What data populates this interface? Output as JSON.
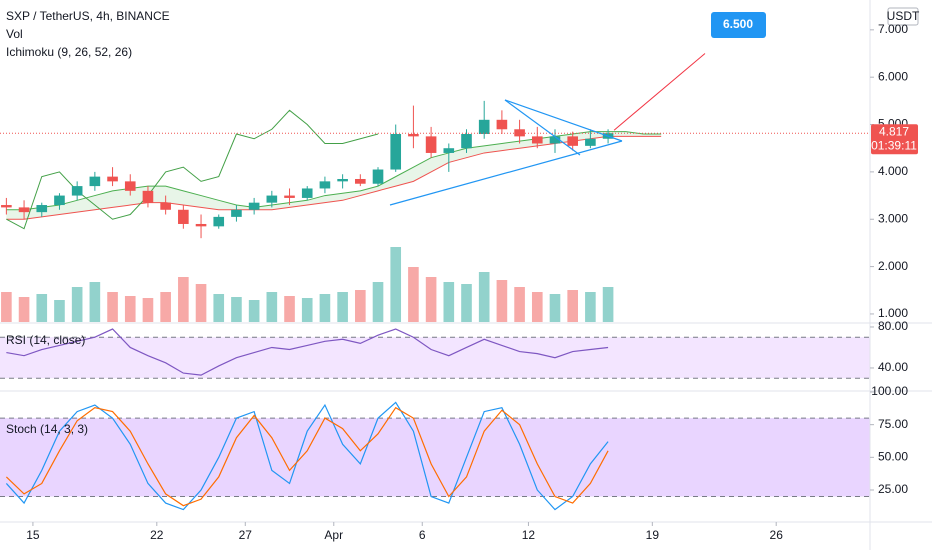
{
  "chart_data": [
    {
      "type": "candlestick",
      "title": "SXP / TetherUS, 4h, BINANCE",
      "volume_label": "Vol",
      "indicator_label": "Ichimoku (9, 26, 52, 26)",
      "currency": "USDT",
      "up_color": "#26a69a",
      "down_color": "#ef5350",
      "xlim": [
        13.14,
        62.3
      ],
      "xticks": [
        {
          "value": 15,
          "label": "15"
        },
        {
          "value": 22,
          "label": "22"
        },
        {
          "value": 27,
          "label": "27"
        },
        {
          "value": 32,
          "label": "Apr"
        },
        {
          "value": 37,
          "label": "6"
        },
        {
          "value": 43,
          "label": "12"
        },
        {
          "value": 50,
          "label": "19"
        },
        {
          "value": 57,
          "label": "26"
        }
      ],
      "ylim": [
        0.83,
        7.63
      ],
      "yticks": [
        {
          "value": 7,
          "label": "7.000"
        },
        {
          "value": 6,
          "label": "6.000"
        },
        {
          "value": 5,
          "label": "5.000"
        },
        {
          "value": 4,
          "label": "4.000"
        },
        {
          "value": 3,
          "label": "3.000"
        },
        {
          "value": 2,
          "label": "2.000"
        },
        {
          "value": 1,
          "label": "1.000"
        }
      ],
      "x": [
        13.5,
        14.5,
        15.5,
        16.5,
        17.5,
        18.5,
        19.5,
        20.5,
        21.5,
        22.5,
        23.5,
        24.5,
        25.5,
        26.5,
        27.5,
        28.5,
        29.5,
        30.5,
        31.5,
        32.5,
        33.5,
        34.5,
        35.5,
        36.5,
        37.5,
        38.5,
        39.5,
        40.5,
        41.5,
        42.5,
        43.5,
        44.5,
        45.5,
        46.5,
        47.5
      ],
      "open": [
        3.3,
        3.25,
        3.15,
        3.3,
        3.5,
        3.7,
        3.9,
        3.8,
        3.6,
        3.35,
        3.2,
        2.9,
        2.85,
        3.05,
        3.2,
        3.35,
        3.5,
        3.45,
        3.65,
        3.8,
        3.85,
        3.75,
        4.05,
        4.8,
        4.75,
        4.4,
        4.5,
        4.8,
        5.1,
        4.9,
        4.75,
        4.6,
        4.75,
        4.55,
        4.7
      ],
      "high": [
        3.45,
        3.4,
        3.35,
        3.55,
        3.8,
        4.0,
        4.1,
        3.95,
        3.7,
        3.5,
        3.3,
        3.1,
        3.1,
        3.3,
        3.45,
        3.6,
        3.65,
        3.7,
        3.9,
        3.95,
        3.95,
        4.1,
        5.0,
        5.4,
        4.95,
        4.6,
        4.9,
        5.5,
        5.3,
        5.1,
        4.95,
        4.9,
        4.85,
        4.9,
        4.9
      ],
      "low": [
        3.1,
        3.0,
        3.05,
        3.2,
        3.4,
        3.6,
        3.7,
        3.5,
        3.25,
        3.1,
        2.8,
        2.6,
        2.8,
        2.95,
        3.1,
        3.25,
        3.3,
        3.4,
        3.55,
        3.65,
        3.7,
        3.7,
        4.0,
        4.5,
        4.3,
        4.0,
        4.4,
        4.7,
        4.8,
        4.6,
        4.5,
        4.4,
        4.45,
        4.5,
        4.6
      ],
      "close": [
        3.25,
        3.15,
        3.3,
        3.5,
        3.7,
        3.9,
        3.8,
        3.6,
        3.35,
        3.2,
        2.9,
        2.85,
        3.05,
        3.2,
        3.35,
        3.5,
        3.45,
        3.65,
        3.8,
        3.85,
        3.75,
        4.05,
        4.8,
        4.75,
        4.4,
        4.5,
        4.8,
        5.1,
        4.9,
        4.75,
        4.6,
        4.75,
        4.55,
        4.7,
        4.817
      ],
      "volume": {
        "ylim": [
          0,
          100
        ],
        "values": [
          30,
          25,
          28,
          22,
          35,
          40,
          30,
          26,
          24,
          30,
          45,
          38,
          28,
          25,
          22,
          30,
          26,
          24,
          28,
          30,
          32,
          40,
          75,
          55,
          45,
          40,
          38,
          50,
          42,
          35,
          30,
          28,
          32,
          30,
          35
        ]
      },
      "ichimoku": [
        {
          "color": "#4caf50",
          "x": [
            13.5,
            14.5,
            15.5,
            16.5,
            17.5,
            18.5,
            19.5,
            20.5,
            21.5,
            22.5,
            23.5,
            24.5,
            25.5,
            26.5,
            27.5,
            28.5,
            29.5,
            30.5,
            31.5,
            32.5,
            33.5,
            34.5,
            35.5,
            36.5,
            37.5,
            38.5,
            39.5,
            40.5,
            41.5,
            42.5,
            43.5,
            44.5,
            45.5,
            46.5,
            47.5,
            48.5,
            49.5,
            50.5
          ],
          "values": [
            3.2,
            3.2,
            3.25,
            3.3,
            3.4,
            3.5,
            3.6,
            3.65,
            3.7,
            3.7,
            3.6,
            3.5,
            3.4,
            3.3,
            3.25,
            3.3,
            3.35,
            3.4,
            3.5,
            3.55,
            3.6,
            3.7,
            3.9,
            4.1,
            4.3,
            4.4,
            4.5,
            4.55,
            4.6,
            4.65,
            4.7,
            4.75,
            4.8,
            4.85,
            4.85,
            4.85,
            4.8,
            4.8
          ]
        },
        {
          "color": "#ef5350",
          "x": [
            13.5,
            14.5,
            15.5,
            16.5,
            17.5,
            18.5,
            19.5,
            20.5,
            21.5,
            22.5,
            23.5,
            24.5,
            25.5,
            26.5,
            27.5,
            28.5,
            29.5,
            30.5,
            31.5,
            32.5,
            33.5,
            34.5,
            35.5,
            36.5,
            37.5,
            38.5,
            39.5,
            40.5,
            41.5,
            42.5,
            43.5,
            44.5,
            45.5,
            46.5,
            47.5,
            48.5,
            49.5,
            50.5
          ],
          "values": [
            3.0,
            3.0,
            3.05,
            3.1,
            3.15,
            3.2,
            3.25,
            3.3,
            3.35,
            3.35,
            3.3,
            3.25,
            3.2,
            3.2,
            3.2,
            3.2,
            3.25,
            3.3,
            3.35,
            3.4,
            3.5,
            3.6,
            3.7,
            3.8,
            4.0,
            4.2,
            4.3,
            4.4,
            4.45,
            4.5,
            4.55,
            4.6,
            4.65,
            4.7,
            4.75,
            4.75,
            4.75,
            4.75
          ]
        },
        {
          "color": "#43a047",
          "x": [
            13.5,
            14.5,
            15.5,
            16.5,
            17.5,
            18.5,
            19.5,
            20.5,
            21.5,
            22.5,
            23.5,
            24.5,
            25.5,
            26.5,
            27.5,
            28.5,
            29.5,
            30.5,
            31.5,
            32.5,
            33.5,
            34.5
          ],
          "values": [
            3.0,
            2.8,
            3.9,
            4.0,
            3.6,
            3.3,
            3.0,
            3.1,
            3.5,
            4.0,
            4.1,
            3.8,
            3.9,
            4.8,
            4.7,
            4.9,
            5.3,
            5.0,
            4.6,
            4.6,
            4.7,
            4.8
          ]
        }
      ],
      "last_price": 4.817,
      "countdown": "01:39:11",
      "target": {
        "value": 6.5,
        "label": "6.500"
      }
    },
    {
      "type": "line",
      "title": "RSI (14, close)",
      "ylim": [
        18.5,
        82.9
      ],
      "yticks": [
        {
          "value": 80,
          "label": "80.00"
        },
        {
          "value": 40,
          "label": "40.00"
        }
      ],
      "bands": [
        30,
        70
      ],
      "x": [
        13.5,
        14.5,
        15.5,
        16.5,
        17.5,
        18.5,
        19.5,
        20.5,
        21.5,
        22.5,
        23.5,
        24.5,
        25.5,
        26.5,
        27.5,
        28.5,
        29.5,
        30.5,
        31.5,
        32.5,
        33.5,
        34.5,
        35.5,
        36.5,
        37.5,
        38.5,
        39.5,
        40.5,
        41.5,
        42.5,
        43.5,
        44.5,
        45.5,
        46.5,
        47.5
      ],
      "series": [
        {
          "color": "#7e57c2",
          "values": [
            55,
            52,
            58,
            62,
            66,
            70,
            78,
            60,
            52,
            45,
            35,
            33,
            42,
            50,
            55,
            60,
            58,
            62,
            66,
            68,
            64,
            72,
            78,
            70,
            58,
            52,
            60,
            68,
            62,
            56,
            54,
            50,
            56,
            58,
            60
          ]
        }
      ]
    },
    {
      "type": "line",
      "title": "Stoch (14, 3, 3)",
      "ylim": [
        0.5,
        100
      ],
      "yticks": [
        {
          "value": 100,
          "label": "100.00"
        },
        {
          "value": 75,
          "label": "75.00"
        },
        {
          "value": 50,
          "label": "50.00"
        },
        {
          "value": 25,
          "label": "25.00"
        }
      ],
      "bands": [
        20,
        80
      ],
      "x": [
        13.5,
        14.5,
        15.5,
        16.5,
        17.5,
        18.5,
        19.5,
        20.5,
        21.5,
        22.5,
        23.5,
        24.5,
        25.5,
        26.5,
        27.5,
        28.5,
        29.5,
        30.5,
        31.5,
        32.5,
        33.5,
        34.5,
        35.5,
        36.5,
        37.5,
        38.5,
        39.5,
        40.5,
        41.5,
        42.5,
        43.5,
        44.5,
        45.5,
        46.5,
        47.5
      ],
      "series": [
        {
          "color": "#2196f3",
          "values": [
            30,
            15,
            40,
            70,
            85,
            90,
            80,
            60,
            30,
            15,
            10,
            25,
            50,
            80,
            85,
            40,
            30,
            70,
            90,
            60,
            45,
            80,
            92,
            70,
            20,
            15,
            50,
            85,
            88,
            60,
            25,
            10,
            20,
            45,
            62
          ]
        },
        {
          "color": "#ff6d00",
          "values": [
            35,
            22,
            30,
            55,
            78,
            88,
            85,
            70,
            45,
            22,
            13,
            18,
            35,
            65,
            82,
            65,
            40,
            55,
            80,
            72,
            55,
            68,
            88,
            80,
            45,
            20,
            35,
            70,
            86,
            75,
            45,
            20,
            15,
            30,
            55
          ]
        }
      ]
    }
  ]
}
